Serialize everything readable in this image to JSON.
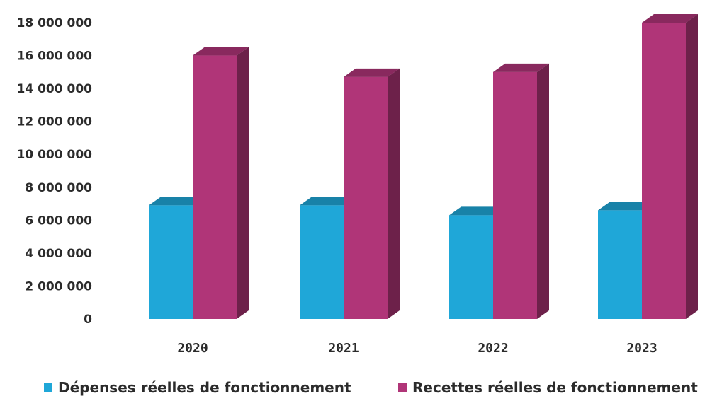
{
  "chart_data": {
    "type": "bar",
    "title": "",
    "xlabel": "",
    "ylabel": "",
    "categories": [
      "2020",
      "2021",
      "2022",
      "2023"
    ],
    "ylim": [
      0,
      18000000
    ],
    "yticks": [
      0,
      2000000,
      4000000,
      6000000,
      8000000,
      10000000,
      12000000,
      14000000,
      16000000,
      18000000
    ],
    "ytick_labels": [
      "0",
      "2 000 000",
      "4 000 000",
      "6 000 000",
      "8 000 000",
      "10 000 000",
      "12 000 000",
      "14 000 000",
      "16 000 000",
      "18 000 000"
    ],
    "grid": false,
    "legend_position": "bottom",
    "style": "3d",
    "series": [
      {
        "name": "Dépenses réelles de fonctionnement",
        "color": "#1fa7d8",
        "values": [
          6900000,
          6900000,
          6300000,
          6600000
        ]
      },
      {
        "name": "Recettes réelles de fonctionnement",
        "color": "#b03578",
        "values": [
          16000000,
          14700000,
          15000000,
          18000000
        ]
      }
    ]
  }
}
